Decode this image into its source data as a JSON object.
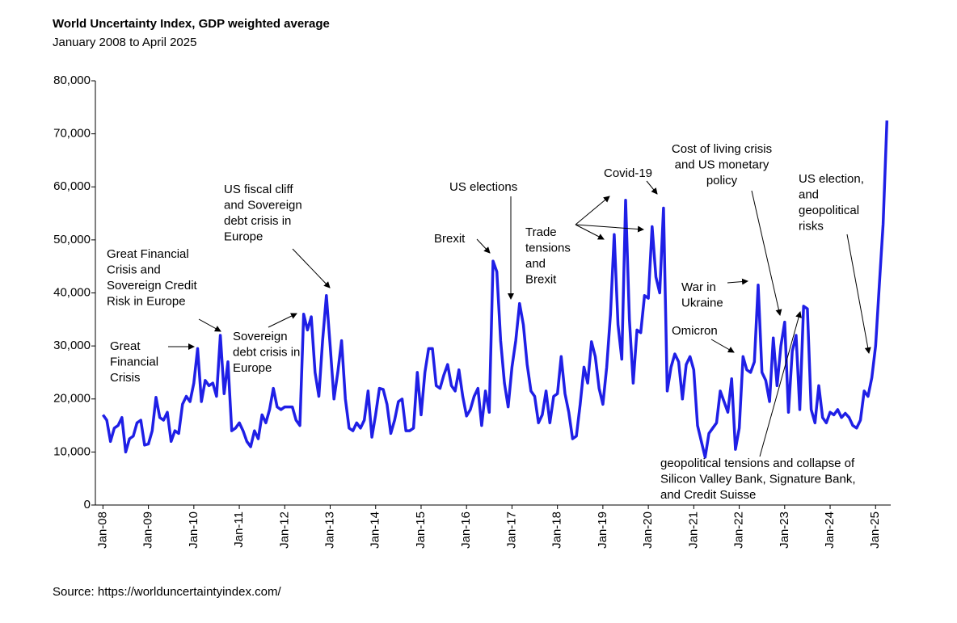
{
  "chart_data": {
    "type": "line",
    "title": "World Uncertainty Index, GDP weighted average",
    "subtitle": "January 2008 to April 2025",
    "source": "Source: https://worlduncertaintyindex.com/",
    "color": "#1f1fe6",
    "x": [
      "2008-01",
      "2008-02",
      "2008-03",
      "2008-04",
      "2008-05",
      "2008-06",
      "2008-07",
      "2008-08",
      "2008-09",
      "2008-10",
      "2008-11",
      "2008-12",
      "2009-01",
      "2009-02",
      "2009-03",
      "2009-04",
      "2009-05",
      "2009-06",
      "2009-07",
      "2009-08",
      "2009-09",
      "2009-10",
      "2009-11",
      "2009-12",
      "2010-01",
      "2010-02",
      "2010-03",
      "2010-04",
      "2010-05",
      "2010-06",
      "2010-07",
      "2010-08",
      "2010-09",
      "2010-10",
      "2010-11",
      "2010-12",
      "2011-01",
      "2011-02",
      "2011-03",
      "2011-04",
      "2011-05",
      "2011-06",
      "2011-07",
      "2011-08",
      "2011-09",
      "2011-10",
      "2011-11",
      "2011-12",
      "2012-01",
      "2012-02",
      "2012-03",
      "2012-04",
      "2012-05",
      "2012-06",
      "2012-07",
      "2012-08",
      "2012-09",
      "2012-10",
      "2012-11",
      "2012-12",
      "2013-01",
      "2013-02",
      "2013-03",
      "2013-04",
      "2013-05",
      "2013-06",
      "2013-07",
      "2013-08",
      "2013-09",
      "2013-10",
      "2013-11",
      "2013-12",
      "2014-01",
      "2014-02",
      "2014-03",
      "2014-04",
      "2014-05",
      "2014-06",
      "2014-07",
      "2014-08",
      "2014-09",
      "2014-10",
      "2014-11",
      "2014-12",
      "2015-01",
      "2015-02",
      "2015-03",
      "2015-04",
      "2015-05",
      "2015-06",
      "2015-07",
      "2015-08",
      "2015-09",
      "2015-10",
      "2015-11",
      "2015-12",
      "2016-01",
      "2016-02",
      "2016-03",
      "2016-04",
      "2016-05",
      "2016-06",
      "2016-07",
      "2016-08",
      "2016-09",
      "2016-10",
      "2016-11",
      "2016-12",
      "2017-01",
      "2017-02",
      "2017-03",
      "2017-04",
      "2017-05",
      "2017-06",
      "2017-07",
      "2017-08",
      "2017-09",
      "2017-10",
      "2017-11",
      "2017-12",
      "2018-01",
      "2018-02",
      "2018-03",
      "2018-04",
      "2018-05",
      "2018-06",
      "2018-07",
      "2018-08",
      "2018-09",
      "2018-10",
      "2018-11",
      "2018-12",
      "2019-01",
      "2019-02",
      "2019-03",
      "2019-04",
      "2019-05",
      "2019-06",
      "2019-07",
      "2019-08",
      "2019-09",
      "2019-10",
      "2019-11",
      "2019-12",
      "2020-01",
      "2020-02",
      "2020-03",
      "2020-04",
      "2020-05",
      "2020-06",
      "2020-07",
      "2020-08",
      "2020-09",
      "2020-10",
      "2020-11",
      "2020-12",
      "2021-01",
      "2021-02",
      "2021-03",
      "2021-04",
      "2021-05",
      "2021-06",
      "2021-07",
      "2021-08",
      "2021-09",
      "2021-10",
      "2021-11",
      "2021-12",
      "2022-01",
      "2022-02",
      "2022-03",
      "2022-04",
      "2022-05",
      "2022-06",
      "2022-07",
      "2022-08",
      "2022-09",
      "2022-10",
      "2022-11",
      "2022-12",
      "2023-01",
      "2023-02",
      "2023-03",
      "2023-04",
      "2023-05",
      "2023-06",
      "2023-07",
      "2023-08",
      "2023-09",
      "2023-10",
      "2023-11",
      "2023-12",
      "2024-01",
      "2024-02",
      "2024-03",
      "2024-04",
      "2024-05",
      "2024-06",
      "2024-07",
      "2024-08",
      "2024-09",
      "2024-10",
      "2024-11",
      "2024-12",
      "2025-01",
      "2025-02",
      "2025-03",
      "2025-04"
    ],
    "values": [
      17000,
      16000,
      12000,
      14500,
      15000,
      16500,
      10000,
      12500,
      13000,
      15500,
      16000,
      11300,
      11500,
      14000,
      20300,
      16500,
      16000,
      17500,
      12000,
      14000,
      13500,
      19000,
      20500,
      19500,
      23000,
      29500,
      19500,
      23500,
      22500,
      23000,
      20500,
      32000,
      21000,
      27000,
      14000,
      14500,
      15500,
      14000,
      12000,
      11000,
      14000,
      12500,
      17000,
      15500,
      18000,
      22000,
      18500,
      18000,
      18500,
      18500,
      18500,
      16000,
      15000,
      36000,
      33000,
      35500,
      25000,
      20500,
      31000,
      39500,
      30000,
      20000,
      25000,
      31000,
      20000,
      14500,
      14000,
      15500,
      14500,
      16000,
      21500,
      12800,
      17000,
      22000,
      21800,
      19000,
      13500,
      16000,
      19500,
      20000,
      14000,
      14000,
      14500,
      25000,
      17000,
      25000,
      29500,
      29500,
      22500,
      22000,
      24500,
      26500,
      22500,
      21500,
      25500,
      20500,
      16800,
      18000,
      20500,
      22000,
      15000,
      21500,
      17500,
      46000,
      44000,
      31000,
      23000,
      18500,
      26000,
      31000,
      38000,
      34000,
      26500,
      21500,
      20500,
      15500,
      17000,
      21500,
      15500,
      20500,
      21000,
      28000,
      21000,
      17500,
      12500,
      13000,
      19000,
      26000,
      23000,
      30800,
      28000,
      22000,
      19000,
      26000,
      36000,
      51000,
      34000,
      27500,
      57500,
      35000,
      23000,
      33000,
      32500,
      39500,
      39000,
      52500,
      43000,
      40000,
      56000,
      21500,
      26000,
      28500,
      27000,
      20000,
      26500,
      28000,
      25500,
      15000,
      12000,
      9000,
      13500,
      14500,
      15500,
      21500,
      19500,
      17500,
      23800,
      10500,
      14500,
      28000,
      25500,
      25000,
      27000,
      41500,
      25000,
      23500,
      19500,
      31500,
      22500,
      30000,
      34500,
      17500,
      29000,
      32000,
      18000,
      37500,
      37000,
      18000,
      15500,
      22500,
      16500,
      15500,
      17500,
      17000,
      18000,
      16500,
      17300,
      16500,
      15000,
      14500,
      16000,
      21500,
      20500,
      24000,
      30000,
      41500,
      53000,
      72500
    ],
    "xlim": [
      "2007-11",
      "2025-05"
    ],
    "xticks": [
      {
        "value": "2008-01",
        "label": "Jan-08"
      },
      {
        "value": "2009-01",
        "label": "Jan-09"
      },
      {
        "value": "2010-01",
        "label": "Jan-10"
      },
      {
        "value": "2011-01",
        "label": "Jan-11"
      },
      {
        "value": "2012-01",
        "label": "Jan-12"
      },
      {
        "value": "2013-01",
        "label": "Jan-13"
      },
      {
        "value": "2014-01",
        "label": "Jan-14"
      },
      {
        "value": "2015-01",
        "label": "Jan-15"
      },
      {
        "value": "2016-01",
        "label": "Jan-16"
      },
      {
        "value": "2017-01",
        "label": "Jan-17"
      },
      {
        "value": "2018-01",
        "label": "Jan-18"
      },
      {
        "value": "2019-01",
        "label": "Jan-19"
      },
      {
        "value": "2020-01",
        "label": "Jan-20"
      },
      {
        "value": "2021-01",
        "label": "Jan-21"
      },
      {
        "value": "2022-01",
        "label": "Jan-22"
      },
      {
        "value": "2023-01",
        "label": "Jan-23"
      },
      {
        "value": "2024-01",
        "label": "Jan-24"
      },
      {
        "value": "2025-01",
        "label": "Jan-25"
      }
    ],
    "ylim": [
      0,
      80000
    ],
    "yticks": [
      0,
      {
        "value": 10000,
        "label": "10,000"
      },
      {
        "value": 20000,
        "label": "20,000"
      },
      {
        "value": 30000,
        "label": "30,000"
      },
      {
        "value": 40000,
        "label": "40,000"
      },
      {
        "value": 50000,
        "label": "50,000"
      },
      {
        "value": 60000,
        "label": "60,000"
      },
      {
        "value": 70000,
        "label": "70,000"
      },
      {
        "value": 80000,
        "label": "80,000"
      }
    ],
    "annotations": [
      [
        "Great",
        "Financial",
        "Crisis"
      ],
      [
        "Great Financial",
        "Crisis and",
        "Sovereign Credit",
        "Risk in Europe"
      ],
      [
        "Sovereign",
        "debt crisis in",
        "Europe"
      ],
      [
        "US fiscal cliff",
        "and Sovereign",
        "debt crisis in",
        "Europe"
      ],
      [
        "Brexit"
      ],
      [
        "US elections"
      ],
      [
        "Trade",
        "tensions",
        "and",
        "Brexit"
      ],
      [
        "Covid-19"
      ],
      [
        "Cost of living crisis",
        "and US monetary",
        "policy"
      ],
      [
        "War in",
        "Ukraine"
      ],
      [
        "Omicron"
      ],
      [
        "geopolitical tensions and collapse of",
        "Silicon Valley Bank, Signature Bank,",
        "and Credit Suisse"
      ],
      [
        "US election,",
        "and",
        "geopolitical",
        "risks"
      ]
    ]
  }
}
